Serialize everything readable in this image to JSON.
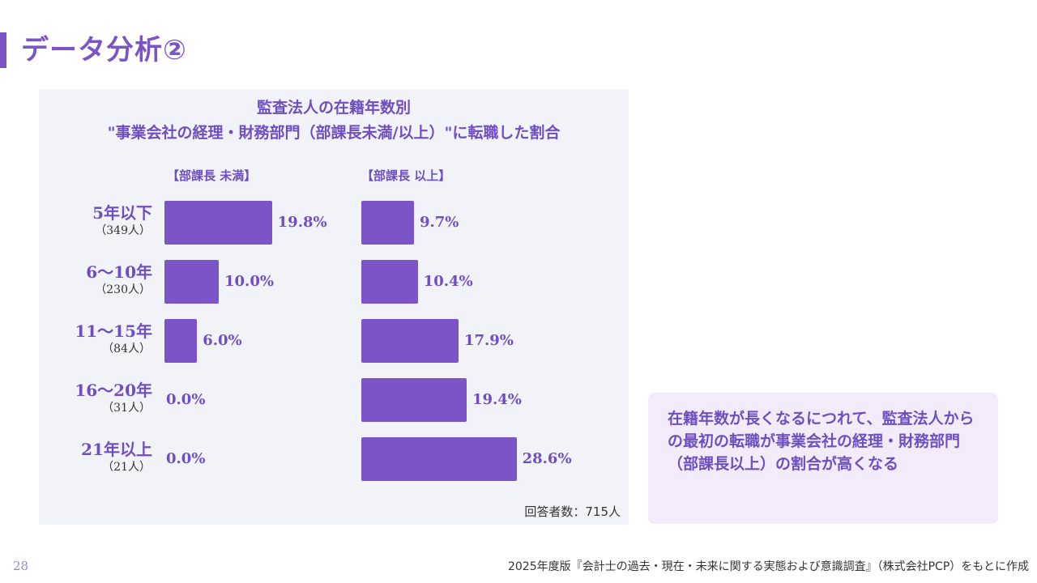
{
  "page": {
    "title": "データ分析②",
    "page_number": "28",
    "source": "2025年度版『会計士の過去・現在・未来に関する実態および意識調査』（株式会社PCP）をもとに作成"
  },
  "note": {
    "text": "在籍年数が長くなるにつれて、監査法人からの最初の転職が事業会社の経理・財務部門（部課長以上）の割合が高くなる"
  },
  "chart_data": {
    "type": "bar",
    "orientation": "horizontal",
    "title_line1": "監査法人の在籍年数別",
    "title_line2": "\"事業会社の経理・財務部門（部課長未満/以上）\"に転職した割合",
    "categories": [
      "5年以下",
      "6〜10年",
      "11〜15年",
      "16〜20年",
      "21年以上"
    ],
    "category_counts": [
      "（349人）",
      "（230人）",
      "（84人）",
      "（31人）",
      "（21人）"
    ],
    "series": [
      {
        "name": "【部課長 未満】",
        "values": [
          19.8,
          10.0,
          6.0,
          0.0,
          0.0
        ],
        "labels": [
          "19.8%",
          "10.0%",
          "6.0%",
          "0.0%",
          "0.0%"
        ]
      },
      {
        "name": "【部課長 以上】",
        "values": [
          9.7,
          10.4,
          17.9,
          19.4,
          28.6
        ],
        "labels": [
          "9.7%",
          "10.4%",
          "17.9%",
          "19.4%",
          "28.6%"
        ]
      }
    ],
    "unit": "%",
    "respondents": "回答者数：715人",
    "bar_color": "#7b55c7",
    "accent_color": "#6f4fbf"
  }
}
